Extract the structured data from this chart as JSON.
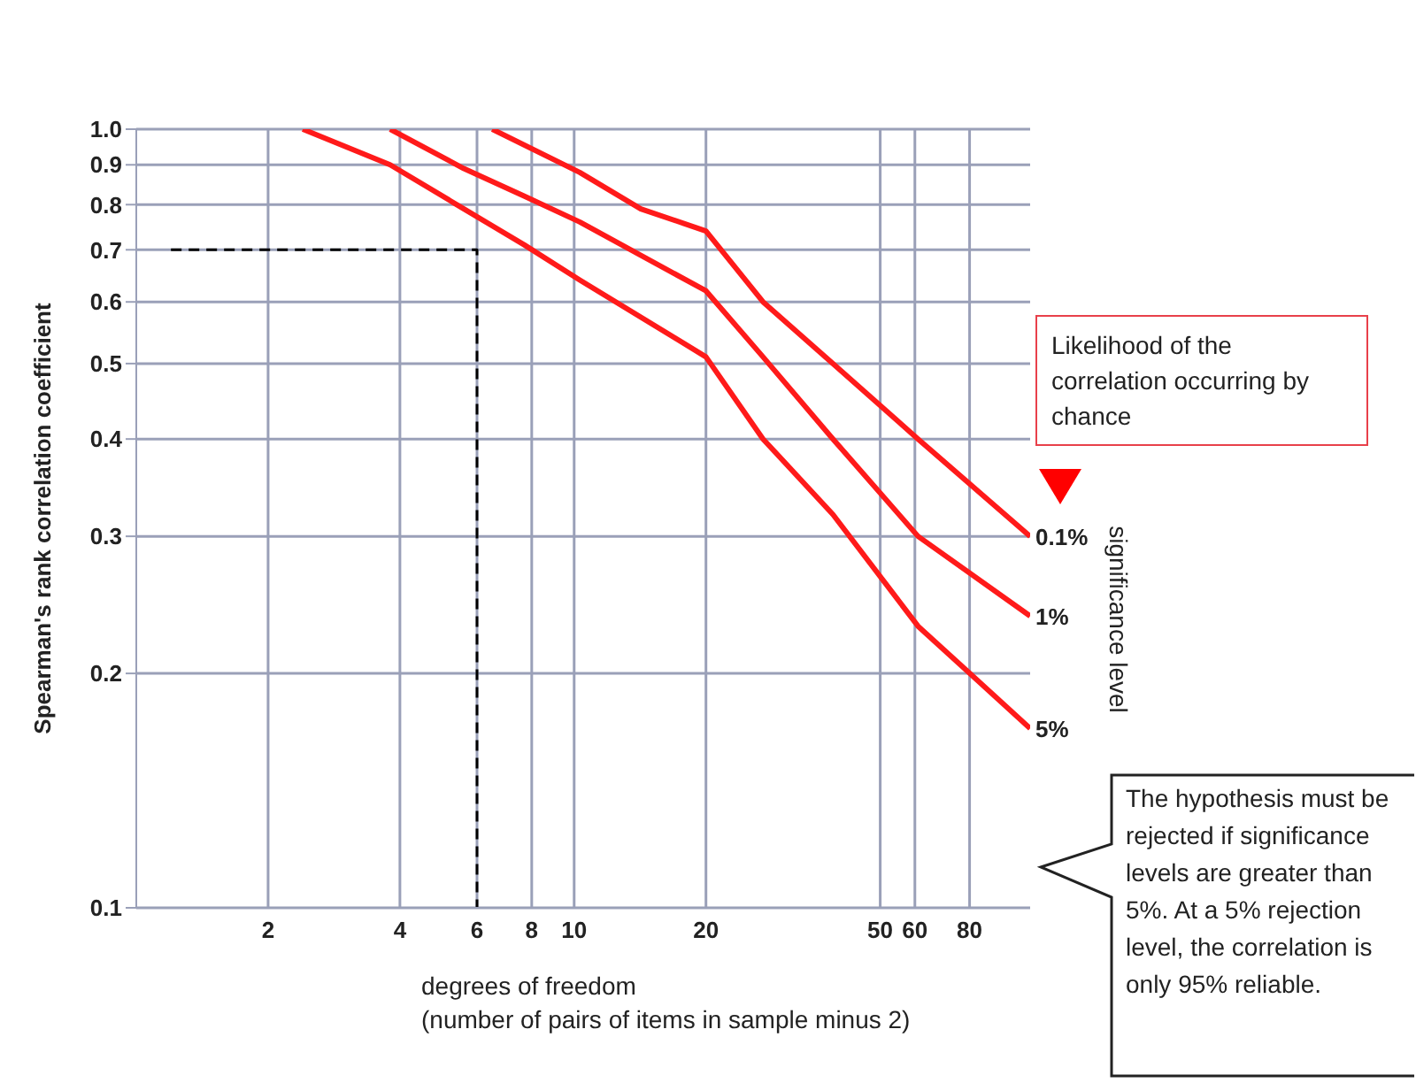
{
  "chart_data": {
    "type": "line",
    "xlabel": "degrees of freedom\n(number of pairs of items in sample minus 2)",
    "ylabel": "Spearman's rank correlation coefficient",
    "log": "xy",
    "xlim": [
      1,
      110
    ],
    "xticks": [
      2,
      4,
      6,
      8,
      10,
      20,
      50,
      60,
      80
    ],
    "ylim": [
      0.1,
      1
    ],
    "yticks": [
      0.1,
      0.2,
      0.3,
      0.4,
      0.5,
      0.6,
      0.7,
      0.8,
      0.9,
      {
        "value": 1,
        "label": "1.0"
      }
    ],
    "grid": true,
    "series": [
      {
        "name": "0.1%",
        "color": "#ff1a1a",
        "x": [
          6.5,
          10.3,
          14.2,
          20,
          27,
          39,
          61,
          110
        ],
        "values": [
          1,
          0.88,
          0.79,
          0.74,
          0.6,
          0.5,
          0.4,
          0.3
        ]
      },
      {
        "name": "1%",
        "color": "#ff1a1a",
        "x": [
          3.8,
          5.6,
          7.7,
          10.3,
          20,
          27,
          39,
          61,
          110
        ],
        "values": [
          1,
          0.89,
          0.82,
          0.76,
          0.62,
          0.51,
          0.4,
          0.3,
          0.237
        ]
      },
      {
        "name": "5%",
        "color": "#ff1a1a",
        "x": [
          2.4,
          3.8,
          5.6,
          7.7,
          10.3,
          20,
          27,
          39,
          61,
          110
        ],
        "values": [
          1,
          0.9,
          0.79,
          0.71,
          0.64,
          0.51,
          0.4,
          0.32,
          0.23,
          0.17
        ]
      },
      {
        "color": "#000000",
        "line_style": "dashed",
        "x": [
          1.2,
          6,
          6
        ],
        "values": [
          0.7,
          0.7,
          0.1
        ]
      }
    ],
    "annotations": [
      "Likelihood of the correlation occurring by chance",
      "significance level",
      "The hypothesis must be rejected if significance levels are greater than 5%. At a 5% rejection level, the correlation is only 95% reliable."
    ]
  }
}
